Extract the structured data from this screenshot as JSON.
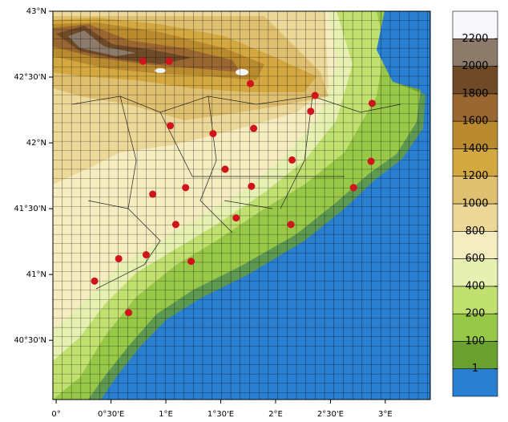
{
  "map": {
    "xlim": [
      -0.03,
      3.41
    ],
    "ylim": [
      40.05,
      43
    ],
    "xticks": [
      {
        "value": 0,
        "label": "0°"
      },
      {
        "value": 0.5,
        "label": "0°30'E"
      },
      {
        "value": 1,
        "label": "1°E"
      },
      {
        "value": 1.5,
        "label": "1°30'E"
      },
      {
        "value": 2,
        "label": "2°E"
      },
      {
        "value": 2.5,
        "label": "2°30'E"
      },
      {
        "value": 3,
        "label": "3°E"
      }
    ],
    "yticks": [
      {
        "value": 40.5,
        "label": "40°30'N"
      },
      {
        "value": 41,
        "label": "41°N"
      },
      {
        "value": 41.5,
        "label": "41°30'N"
      },
      {
        "value": 42,
        "label": "42°N"
      },
      {
        "value": 42.5,
        "label": "42°30'N"
      },
      {
        "value": 43,
        "label": "43°N"
      }
    ],
    "station_color": "#d0141c",
    "stations_lon": [
      0.79,
      1.03,
      1.77,
      2.36,
      2.88,
      1.04,
      1.43,
      1.8,
      2.32,
      2.15,
      2.87,
      1.54,
      1.18,
      1.78,
      2.71,
      0.88,
      1.64,
      1.09,
      2.14,
      0.57,
      0.82,
      1.23,
      0.35,
      0.66
    ],
    "stations_lat": [
      42.62,
      42.62,
      42.45,
      42.36,
      42.3,
      42.13,
      42.07,
      42.11,
      42.24,
      41.87,
      41.86,
      41.8,
      41.66,
      41.67,
      41.66,
      41.61,
      41.43,
      41.38,
      41.38,
      41.12,
      41.15,
      41.1,
      40.95,
      40.71
    ]
  },
  "colorbar": {
    "levels": [
      1,
      100,
      200,
      400,
      600,
      800,
      1000,
      1200,
      1400,
      1600,
      1800,
      2000,
      2200
    ],
    "colors": [
      "#2a7fd0",
      "#6aa030",
      "#98c848",
      "#c0e070",
      "#e6f0b0",
      "#f5ecc0",
      "#ecd898",
      "#dfc070",
      "#d4a840",
      "#b98a2e",
      "#9a6632",
      "#6e4a28",
      "#8c7b6a",
      "#f8f8fc"
    ]
  }
}
